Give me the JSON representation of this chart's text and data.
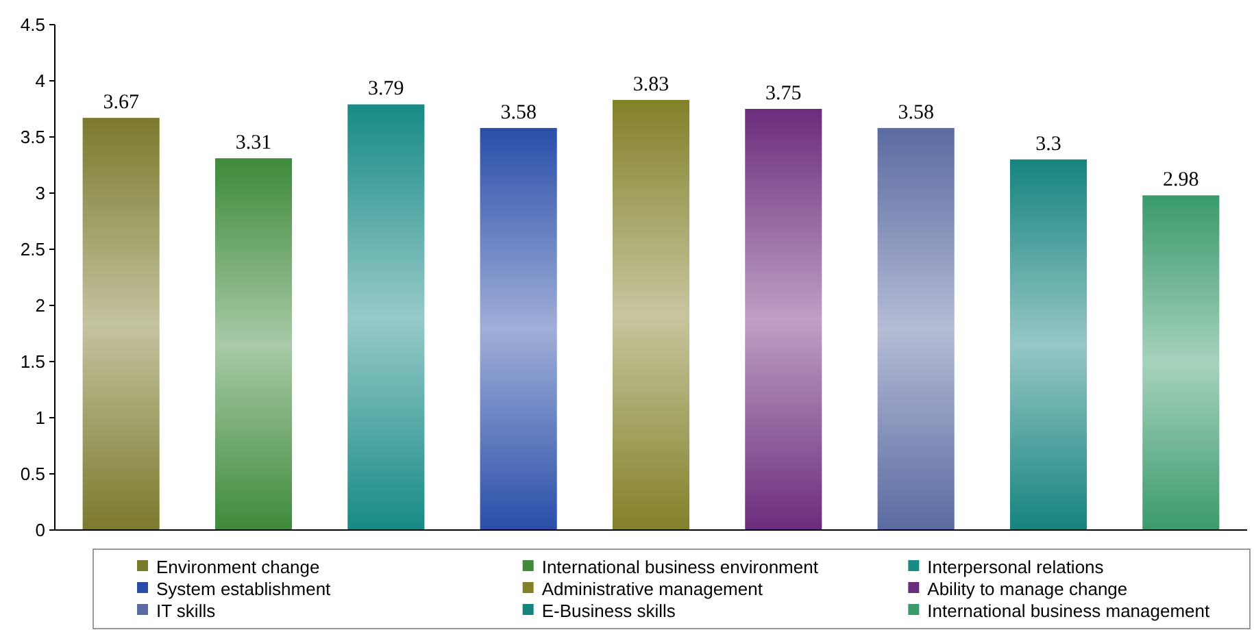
{
  "chart_data": {
    "type": "bar",
    "categories": [
      null,
      null,
      null,
      null,
      null,
      null,
      null,
      null,
      null
    ],
    "series": [
      {
        "name": "Environment change",
        "color": "#7b7a2c",
        "values": [
          3.67,
          null,
          null,
          null,
          null,
          null,
          null,
          null,
          null
        ]
      },
      {
        "name": "International business environment",
        "color": "#3e8a3a",
        "values": [
          null,
          3.31,
          null,
          null,
          null,
          null,
          null,
          null,
          null
        ]
      },
      {
        "name": "Interpersonal relations",
        "color": "#178a85",
        "values": [
          null,
          null,
          3.79,
          null,
          null,
          null,
          null,
          null,
          null
        ]
      },
      {
        "name": "System establishment",
        "color": "#2a4ea8",
        "values": [
          null,
          null,
          null,
          3.58,
          null,
          null,
          null,
          null,
          null
        ]
      },
      {
        "name": "Administrative management",
        "color": "#828129",
        "values": [
          null,
          null,
          null,
          null,
          3.83,
          null,
          null,
          null,
          null
        ]
      },
      {
        "name": "Ability to manage change",
        "color": "#6c2c7c",
        "values": [
          null,
          null,
          null,
          null,
          null,
          3.75,
          null,
          null,
          null
        ]
      },
      {
        "name": "IT skills",
        "color": "#5b6aa2",
        "values": [
          null,
          null,
          null,
          null,
          null,
          null,
          3.58,
          null,
          null
        ]
      },
      {
        "name": "E-Business skills",
        "color": "#16837f",
        "values": [
          null,
          null,
          null,
          null,
          null,
          null,
          null,
          3.3,
          null
        ]
      },
      {
        "name": "International business management",
        "color": "#3a9a6c",
        "values": [
          null,
          null,
          null,
          null,
          null,
          null,
          null,
          null,
          2.98
        ]
      }
    ],
    "ylim": [
      0,
      4.5
    ],
    "yticks": [
      0,
      0.5,
      1,
      1.5,
      2,
      2.5,
      3,
      3.5,
      4,
      4.5
    ],
    "data_labels": true,
    "legend": "bottom",
    "grid": false
  }
}
